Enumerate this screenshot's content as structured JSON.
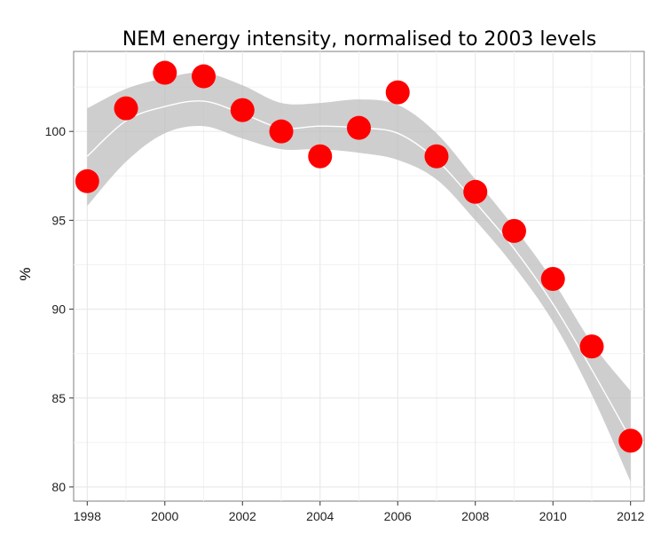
{
  "chart_data": {
    "type": "scatter",
    "title": "NEM energy intensity, normalised to 2003 levels",
    "xlabel": "",
    "ylabel": "%",
    "xlim": [
      1997.65,
      2012.35
    ],
    "ylim": [
      79.2,
      104.5
    ],
    "x_ticks": [
      1998,
      2000,
      2002,
      2004,
      2006,
      2008,
      2010,
      2012
    ],
    "y_ticks": [
      80,
      85,
      90,
      95,
      100
    ],
    "grid": true,
    "legend": "none",
    "series": [
      {
        "marker": "circle",
        "color": "#ff0000",
        "x": [
          1998,
          1999,
          2000,
          2001,
          2002,
          2003,
          2004,
          2005,
          2006,
          2007,
          2008,
          2009,
          2010,
          2011,
          2012
        ],
        "y": [
          97.2,
          101.3,
          103.3,
          103.1,
          101.2,
          100.0,
          98.6,
          100.2,
          102.2,
          98.6,
          96.6,
          94.4,
          91.7,
          87.9,
          82.6
        ]
      }
    ],
    "smooth_fit": {
      "color": "#ffffff",
      "band_color": "#bebebe",
      "x": [
        1998,
        1999,
        2000,
        2001,
        2002,
        2003,
        2004,
        2005,
        2006,
        2007,
        2008,
        2009,
        2010,
        2011,
        2012
      ],
      "y": [
        98.6,
        100.6,
        101.4,
        101.7,
        101.0,
        100.2,
        100.3,
        100.2,
        99.9,
        98.4,
        96.0,
        93.4,
        90.3,
        86.6,
        82.7
      ],
      "lower": [
        95.8,
        98.3,
        99.9,
        100.3,
        99.6,
        99.0,
        99.0,
        98.8,
        98.4,
        97.3,
        95.0,
        92.4,
        89.3,
        85.2,
        80.3
      ],
      "upper": [
        101.3,
        102.4,
        103.0,
        103.3,
        102.6,
        101.6,
        101.6,
        101.8,
        101.5,
        99.9,
        97.3,
        94.6,
        91.6,
        88.1,
        85.4
      ]
    }
  }
}
